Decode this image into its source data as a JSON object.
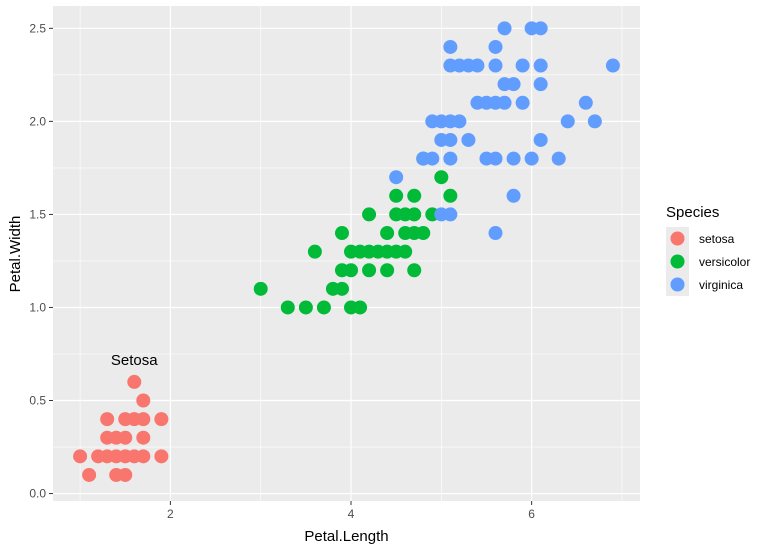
{
  "chart_data": {
    "type": "scatter",
    "xlabel": "Petal.Length",
    "ylabel": "Petal.Width",
    "xlim": [
      0.7,
      7.2
    ],
    "ylim": [
      -0.04,
      2.62
    ],
    "x_ticks": [
      2,
      4,
      6
    ],
    "y_ticks": [
      0.0,
      0.5,
      1.0,
      1.5,
      2.0,
      2.5
    ],
    "x_tick_labels": [
      "2",
      "4",
      "6"
    ],
    "y_tick_labels": [
      "0.0",
      "0.5",
      "1.0",
      "1.5",
      "2.0",
      "2.5"
    ],
    "grid": true,
    "background": "#ebebeb",
    "legend": {
      "title": "Species",
      "position": "right",
      "entries": [
        "setosa",
        "versicolor",
        "virginica"
      ]
    },
    "annotation": {
      "text": "Setosa",
      "x": 1.6,
      "y": 0.69
    },
    "series": [
      {
        "name": "setosa",
        "color": "#F8766D",
        "points": [
          [
            1.0,
            0.2
          ],
          [
            1.2,
            0.2
          ],
          [
            1.3,
            0.2
          ],
          [
            1.4,
            0.2
          ],
          [
            1.5,
            0.2
          ],
          [
            1.6,
            0.2
          ],
          [
            1.7,
            0.2
          ],
          [
            1.9,
            0.2
          ],
          [
            1.1,
            0.1
          ],
          [
            1.4,
            0.1
          ],
          [
            1.5,
            0.1
          ],
          [
            1.3,
            0.3
          ],
          [
            1.4,
            0.3
          ],
          [
            1.5,
            0.3
          ],
          [
            1.7,
            0.3
          ],
          [
            1.3,
            0.4
          ],
          [
            1.5,
            0.4
          ],
          [
            1.6,
            0.4
          ],
          [
            1.7,
            0.4
          ],
          [
            1.9,
            0.4
          ],
          [
            1.7,
            0.5
          ],
          [
            1.6,
            0.6
          ]
        ]
      },
      {
        "name": "versicolor",
        "color": "#00BA38",
        "points": [
          [
            3.0,
            1.1
          ],
          [
            3.8,
            1.1
          ],
          [
            3.3,
            1.0
          ],
          [
            3.5,
            1.0
          ],
          [
            3.7,
            1.0
          ],
          [
            4.0,
            1.0
          ],
          [
            4.1,
            1.0
          ],
          [
            3.9,
            1.1
          ],
          [
            3.6,
            1.3
          ],
          [
            3.9,
            1.2
          ],
          [
            4.0,
            1.2
          ],
          [
            4.2,
            1.2
          ],
          [
            4.4,
            1.2
          ],
          [
            4.7,
            1.2
          ],
          [
            4.0,
            1.3
          ],
          [
            4.1,
            1.3
          ],
          [
            4.2,
            1.3
          ],
          [
            4.3,
            1.3
          ],
          [
            4.4,
            1.3
          ],
          [
            4.5,
            1.3
          ],
          [
            4.6,
            1.3
          ],
          [
            3.9,
            1.4
          ],
          [
            4.4,
            1.4
          ],
          [
            4.6,
            1.4
          ],
          [
            4.7,
            1.4
          ],
          [
            4.8,
            1.4
          ],
          [
            4.2,
            1.5
          ],
          [
            4.5,
            1.5
          ],
          [
            4.6,
            1.5
          ],
          [
            4.7,
            1.5
          ],
          [
            4.9,
            1.5
          ],
          [
            4.5,
            1.6
          ],
          [
            4.7,
            1.6
          ],
          [
            5.1,
            1.6
          ],
          [
            5.0,
            1.7
          ],
          [
            4.8,
            1.8
          ]
        ]
      },
      {
        "name": "virginica",
        "color": "#619CFF",
        "points": [
          [
            4.5,
            1.7
          ],
          [
            5.0,
            1.5
          ],
          [
            5.1,
            1.5
          ],
          [
            5.6,
            1.4
          ],
          [
            5.8,
            1.6
          ],
          [
            4.8,
            1.8
          ],
          [
            4.9,
            1.8
          ],
          [
            5.1,
            1.8
          ],
          [
            5.5,
            1.8
          ],
          [
            5.6,
            1.8
          ],
          [
            5.8,
            1.8
          ],
          [
            6.0,
            1.8
          ],
          [
            6.3,
            1.8
          ],
          [
            5.0,
            1.9
          ],
          [
            5.1,
            1.9
          ],
          [
            5.3,
            1.9
          ],
          [
            6.1,
            1.9
          ],
          [
            4.9,
            2.0
          ],
          [
            5.0,
            2.0
          ],
          [
            5.1,
            2.0
          ],
          [
            5.2,
            2.0
          ],
          [
            6.4,
            2.0
          ],
          [
            6.7,
            2.0
          ],
          [
            5.4,
            2.1
          ],
          [
            5.5,
            2.1
          ],
          [
            5.6,
            2.1
          ],
          [
            5.7,
            2.1
          ],
          [
            5.9,
            2.1
          ],
          [
            6.6,
            2.1
          ],
          [
            5.7,
            2.2
          ],
          [
            5.8,
            2.2
          ],
          [
            6.1,
            2.2
          ],
          [
            5.1,
            2.3
          ],
          [
            5.2,
            2.3
          ],
          [
            5.3,
            2.3
          ],
          [
            5.4,
            2.3
          ],
          [
            5.6,
            2.3
          ],
          [
            5.9,
            2.3
          ],
          [
            6.1,
            2.3
          ],
          [
            6.9,
            2.3
          ],
          [
            5.1,
            2.4
          ],
          [
            5.6,
            2.4
          ],
          [
            5.7,
            2.5
          ],
          [
            6.0,
            2.5
          ],
          [
            6.1,
            2.5
          ]
        ]
      }
    ]
  }
}
